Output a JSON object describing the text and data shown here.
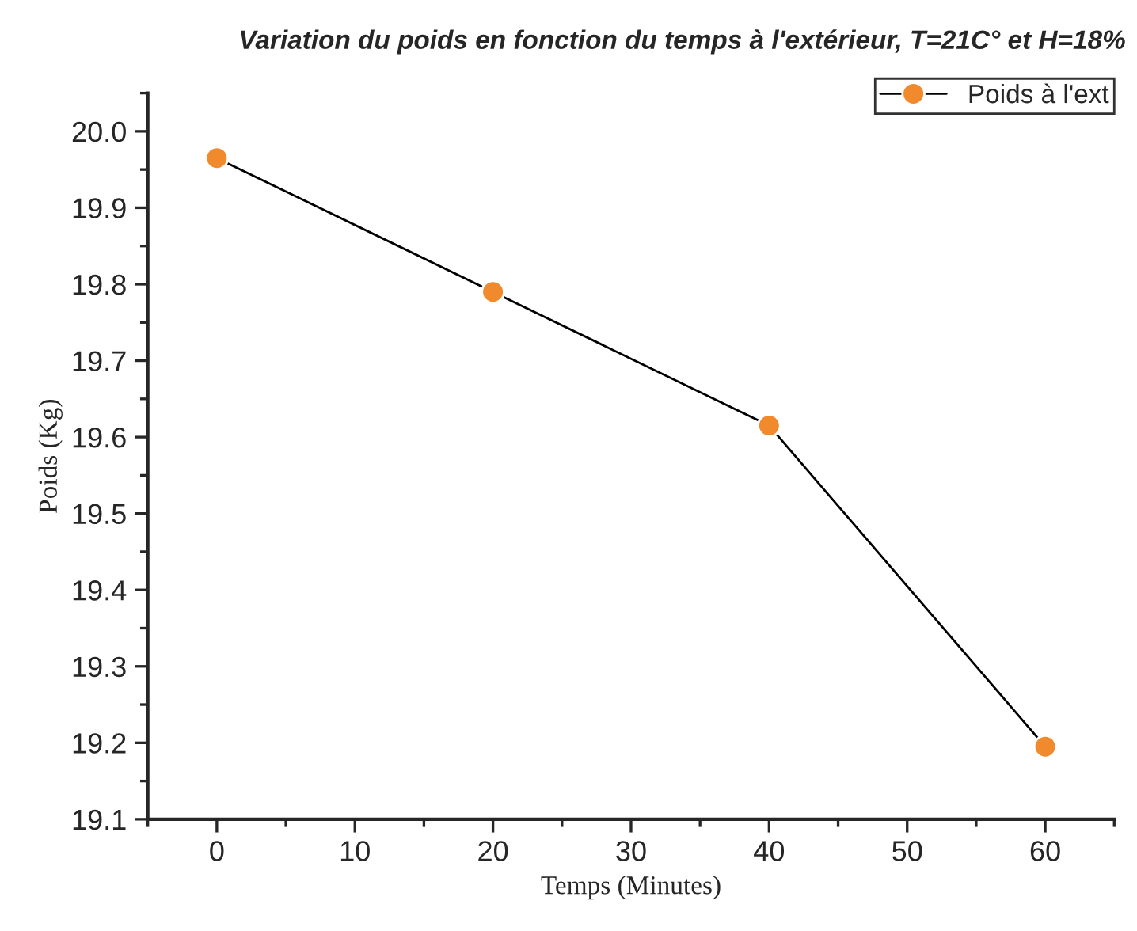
{
  "chart_data": {
    "type": "line",
    "title": "Variation du poids en fonction du temps à l'extérieur, T=21C° et H=18%",
    "xlabel": "Temps (Minutes)",
    "ylabel": "Poids (Kg)",
    "x": [
      0,
      20,
      40,
      60
    ],
    "series": [
      {
        "name": "Poids à l'ext",
        "color": "#f08a2c",
        "values": [
          19.965,
          19.79,
          19.615,
          19.195
        ]
      }
    ],
    "xlim": [
      -5,
      65
    ],
    "xticks": [
      0,
      10,
      20,
      30,
      40,
      50,
      60
    ],
    "ylim": [
      19.1,
      20.05
    ],
    "yticks": [
      {
        "value": 19.1,
        "label": "19.1"
      },
      {
        "value": 19.2,
        "label": "19.2"
      },
      {
        "value": 19.3,
        "label": "19.3"
      },
      {
        "value": 19.4,
        "label": "19.4"
      },
      {
        "value": 19.5,
        "label": "19.5"
      },
      {
        "value": 19.6,
        "label": "19.6"
      },
      {
        "value": 19.7,
        "label": "19.7"
      },
      {
        "value": 19.8,
        "label": "19.8"
      },
      {
        "value": 19.9,
        "label": "19.9"
      },
      {
        "value": 20.0,
        "label": "20.0"
      }
    ],
    "grid": false,
    "legend": "top right",
    "marker": "circle",
    "line_style": "solid"
  }
}
